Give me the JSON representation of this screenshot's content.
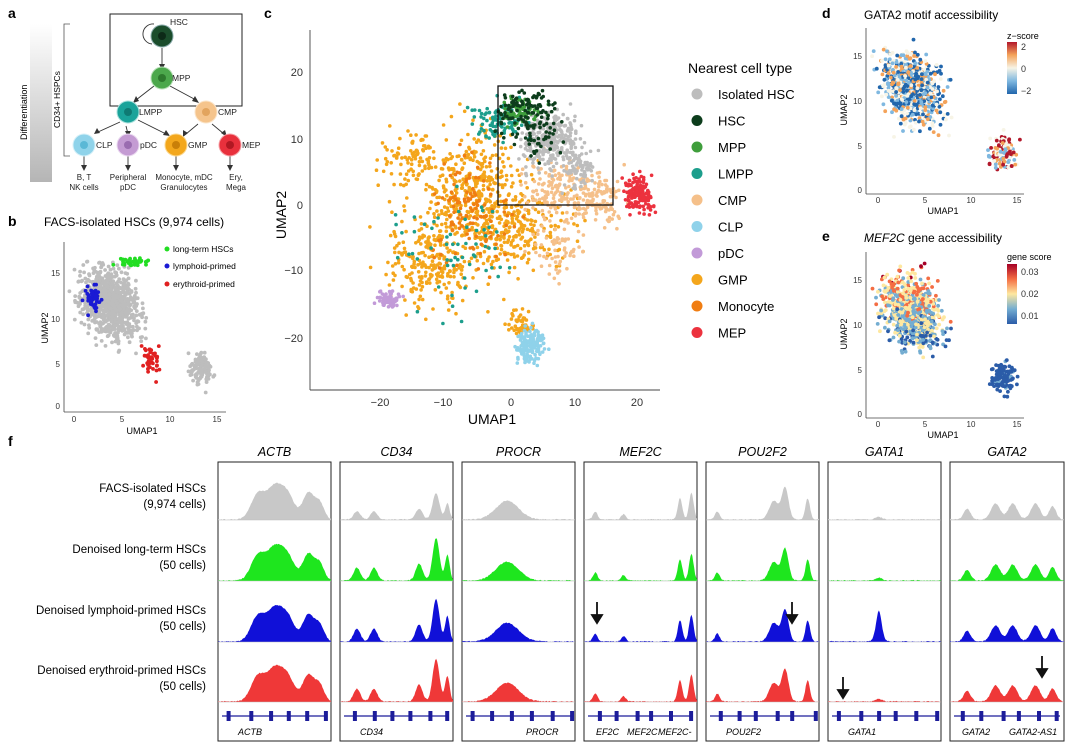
{
  "panel_a": {
    "letter": "a",
    "axis_label": "Differentiation",
    "group_label": "CD34+ HSPCs",
    "nodes": {
      "hsc": "HSC",
      "mpp": "MPP",
      "lmpp": "LMPP",
      "cmp": "CMP",
      "clp": "CLP",
      "pdc": "pDC",
      "gmp": "GMP",
      "mep": "MEP"
    },
    "outputs": {
      "clp_line1": "B, T",
      "clp_line2": "NK cells",
      "pdc_line1": "Peripheral",
      "pdc_line2": "pDC",
      "gmp_line1": "Monocyte, mDC",
      "gmp_line2": "Granulocytes",
      "mep_line1": "Ery,",
      "mep_line2": "Mega"
    },
    "colors": {
      "hsc": "#1b4d2c",
      "mpp": "#4ca84c",
      "lmpp": "#1aa39a",
      "cmp": "#f5c48c",
      "clp": "#8fd3ea",
      "pdc": "#c49bd3",
      "gmp": "#f3a71c",
      "mep": "#e8303c"
    }
  },
  "panel_b": {
    "letter": "b",
    "title": "FACS-isolated HSCs (9,974 cells)",
    "legend": [
      {
        "label": "long-term HSCs",
        "color": "#22dd22"
      },
      {
        "label": "lymphoid-primed",
        "color": "#1a1ad4"
      },
      {
        "label": "erythroid-primed",
        "color": "#e02020"
      }
    ],
    "xlabel": "UMAP1",
    "ylabel": "UMAP2",
    "xticks": [
      "0",
      "5",
      "10",
      "15"
    ],
    "yticks": [
      "0",
      "5",
      "10",
      "15"
    ]
  },
  "panel_c": {
    "letter": "c",
    "xlabel": "UMAP1",
    "ylabel": "UMAP2",
    "xticks": [
      "−20",
      "−10",
      "0",
      "10",
      "20"
    ],
    "yticks": [
      "−20",
      "−10",
      "0",
      "10",
      "20"
    ],
    "legend_title": "Nearest cell type",
    "legend": [
      {
        "label": "Isolated HSC",
        "color": "#bdbdbd"
      },
      {
        "label": "HSC",
        "color": "#0d3d1c"
      },
      {
        "label": "MPP",
        "color": "#3f9e3c"
      },
      {
        "label": "LMPP",
        "color": "#1c9e8c"
      },
      {
        "label": "CMP",
        "color": "#f5c08a"
      },
      {
        "label": "CLP",
        "color": "#8fd2ea"
      },
      {
        "label": "pDC",
        "color": "#c29ad8"
      },
      {
        "label": "GMP",
        "color": "#f4a61c"
      },
      {
        "label": "Monocyte",
        "color": "#f07d12"
      },
      {
        "label": "MEP",
        "color": "#ec323e"
      }
    ]
  },
  "panel_d": {
    "letter": "d",
    "title": "GATA2 motif accessibility",
    "colorbar_title": "z−score",
    "colorbar_ticks": [
      "2",
      "0",
      "−2"
    ],
    "xlabel": "UMAP1",
    "ylabel": "UMAP2",
    "xticks": [
      "0",
      "5",
      "10",
      "15"
    ],
    "yticks": [
      "0",
      "5",
      "10",
      "15"
    ]
  },
  "panel_e": {
    "letter": "e",
    "title_gene": "MEF2C",
    "title_rest": " gene accessibility",
    "colorbar_title": "gene score",
    "colorbar_ticks": [
      "0.03",
      "0.02",
      "0.01"
    ],
    "xlabel": "UMAP1",
    "ylabel": "UMAP2",
    "xticks": [
      "0",
      "5",
      "10",
      "15"
    ],
    "yticks": [
      "0",
      "5",
      "10",
      "15"
    ]
  },
  "panel_f": {
    "letter": "f",
    "tracks": [
      {
        "line1": "FACS-isolated HSCs",
        "line2": "(9,974 cells)",
        "color": "#c8c8c8"
      },
      {
        "line1": "Denoised long-term HSCs",
        "line2": "(50 cells)",
        "color": "#1ee61e"
      },
      {
        "line1": "Denoised lymphoid-primed HSCs",
        "line2": "(50 cells)",
        "color": "#1010d8"
      },
      {
        "line1": "Denoised erythroid-primed HSCs",
        "line2": "(50 cells)",
        "color": "#ef3838"
      }
    ],
    "genes": [
      {
        "name": "ACTB",
        "gene_labels": [
          "ACTB"
        ]
      },
      {
        "name": "CD34",
        "gene_labels": [
          "CD34"
        ]
      },
      {
        "name": "PROCR",
        "gene_labels": [
          "PROCR"
        ]
      },
      {
        "name": "MEF2C",
        "gene_labels": [
          "EF2C",
          "MEF2C",
          "MEF2C-"
        ]
      },
      {
        "name": "POU2F2",
        "gene_labels": [
          "POU2F2"
        ]
      },
      {
        "name": "GATA1",
        "gene_labels": [
          "GATA1"
        ]
      },
      {
        "name": "GATA2",
        "gene_labels": [
          "GATA2",
          "GATA2-AS1"
        ]
      }
    ]
  }
}
